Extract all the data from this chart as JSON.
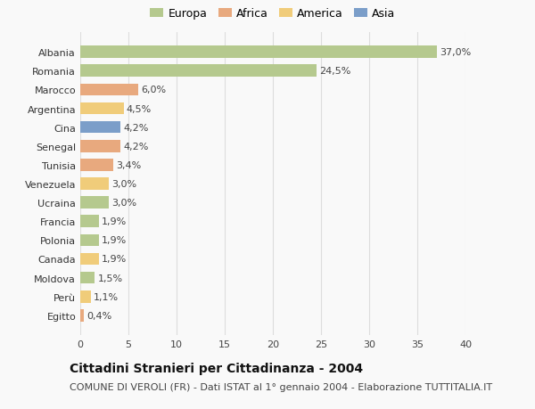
{
  "countries": [
    "Albania",
    "Romania",
    "Marocco",
    "Argentina",
    "Cina",
    "Senegal",
    "Tunisia",
    "Venezuela",
    "Ucraina",
    "Francia",
    "Polonia",
    "Canada",
    "Moldova",
    "Perù",
    "Egitto"
  ],
  "values": [
    37.0,
    24.5,
    6.0,
    4.5,
    4.2,
    4.2,
    3.4,
    3.0,
    3.0,
    1.9,
    1.9,
    1.9,
    1.5,
    1.1,
    0.4
  ],
  "labels": [
    "37,0%",
    "24,5%",
    "6,0%",
    "4,5%",
    "4,2%",
    "4,2%",
    "3,4%",
    "3,0%",
    "3,0%",
    "1,9%",
    "1,9%",
    "1,9%",
    "1,5%",
    "1,1%",
    "0,4%"
  ],
  "continents": [
    "Europa",
    "Europa",
    "Africa",
    "America",
    "Asia",
    "Africa",
    "Africa",
    "America",
    "Europa",
    "Europa",
    "Europa",
    "America",
    "Europa",
    "America",
    "Africa"
  ],
  "colors": {
    "Europa": "#b5c98e",
    "Africa": "#e8a97e",
    "America": "#f0cc7a",
    "Asia": "#7b9ec9"
  },
  "legend_order": [
    "Europa",
    "Africa",
    "America",
    "Asia"
  ],
  "legend_colors": [
    "#b5c98e",
    "#e8a97e",
    "#f0cc7a",
    "#7b9ec9"
  ],
  "title": "Cittadini Stranieri per Cittadinanza - 2004",
  "subtitle": "COMUNE DI VEROLI (FR) - Dati ISTAT al 1° gennaio 2004 - Elaborazione TUTTITALIA.IT",
  "xlim": [
    0,
    40
  ],
  "xticks": [
    0,
    5,
    10,
    15,
    20,
    25,
    30,
    35,
    40
  ],
  "bg_color": "#f9f9f9",
  "grid_color": "#dddddd",
  "bar_height": 0.65,
  "title_fontsize": 10,
  "subtitle_fontsize": 8,
  "label_fontsize": 8,
  "tick_fontsize": 8,
  "legend_fontsize": 9
}
